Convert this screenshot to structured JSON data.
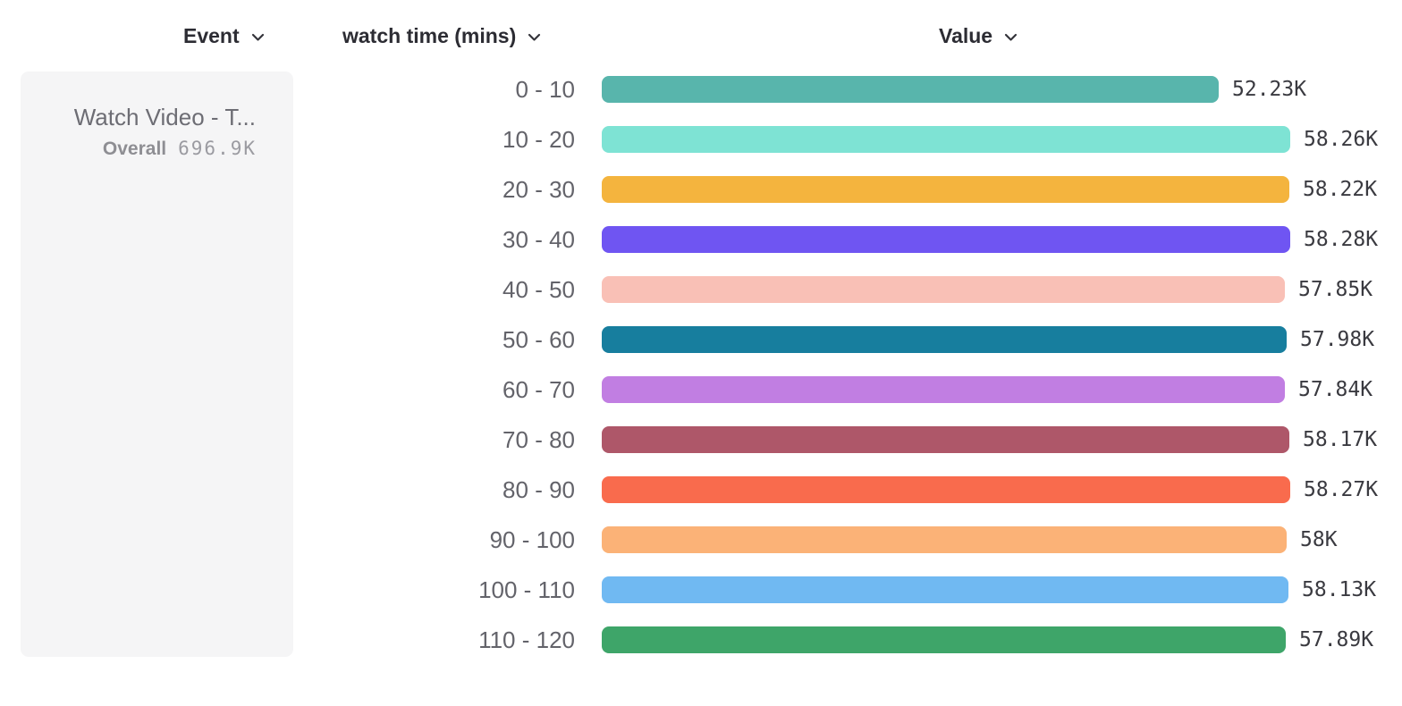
{
  "columns": {
    "event": {
      "label": "Event"
    },
    "breakdown": {
      "label": "watch time (mins)"
    },
    "value": {
      "label": "Value"
    }
  },
  "event_card": {
    "title": "Watch Video - T...",
    "overall_label": "Overall",
    "overall_value": "696.9K"
  },
  "chart_data": {
    "type": "bar",
    "orientation": "horizontal",
    "title": "",
    "xlabel": "Value",
    "ylabel": "watch time (mins)",
    "categories": [
      "0 - 10",
      "10 - 20",
      "20 - 30",
      "30 - 40",
      "40 - 50",
      "50 - 60",
      "60 - 70",
      "70 - 80",
      "80 - 90",
      "90 - 100",
      "100 - 110",
      "110 - 120"
    ],
    "values": [
      52230,
      58260,
      58220,
      58280,
      57850,
      57980,
      57840,
      58170,
      58270,
      58000,
      58130,
      57890
    ],
    "value_labels": [
      "52.23K",
      "58.26K",
      "58.22K",
      "58.28K",
      "57.85K",
      "57.98K",
      "57.84K",
      "58.17K",
      "58.27K",
      "58K",
      "58.13K",
      "57.89K"
    ],
    "colors": [
      "#58b5ac",
      "#7ee3d4",
      "#f4b43e",
      "#6f55f2",
      "#f9c0b6",
      "#177e9e",
      "#c17ee2",
      "#ae5769",
      "#f96b4d",
      "#fbb277",
      "#70b9f2",
      "#3ea569"
    ],
    "xlim": [
      0,
      58280
    ],
    "grid": false,
    "legend": false
  },
  "icons": {
    "chevron_color": "#35353b"
  }
}
